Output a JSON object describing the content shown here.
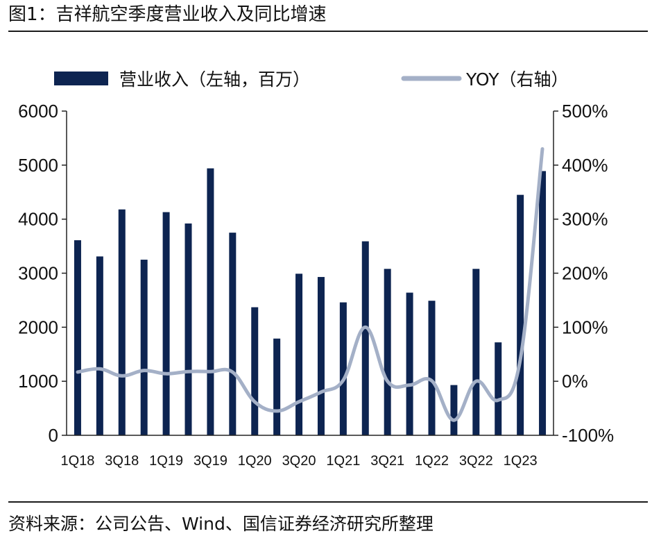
{
  "figure": {
    "title": "图1：吉祥航空季度营业收入及同比增速",
    "source": "资料来源：公司公告、Wind、国信证券经济研究所整理"
  },
  "colors": {
    "bar": "#0d2451",
    "line": "#a4b0c7",
    "axis": "#222222"
  },
  "chart_data": {
    "type": "bar",
    "title": "吉祥航空季度营业收入及同比增速",
    "categories": [
      "1Q18",
      "2Q18",
      "3Q18",
      "4Q18",
      "1Q19",
      "2Q19",
      "3Q19",
      "4Q19",
      "1Q20",
      "2Q20",
      "3Q20",
      "4Q20",
      "1Q21",
      "2Q21",
      "3Q21",
      "4Q21",
      "1Q22",
      "2Q22",
      "3Q22",
      "4Q22",
      "1Q23",
      "2Q23"
    ],
    "x_tick_labels": [
      "1Q18",
      "3Q18",
      "1Q19",
      "3Q19",
      "1Q20",
      "3Q20",
      "1Q21",
      "3Q21",
      "1Q22",
      "3Q22",
      "1Q23"
    ],
    "series": [
      {
        "name": "营业收入（左轴，百万）",
        "type": "bar",
        "axis": "left",
        "values": [
          3610,
          3310,
          4180,
          3250,
          4130,
          3920,
          4940,
          3750,
          2370,
          1790,
          2990,
          2930,
          2460,
          3590,
          3080,
          2640,
          2490,
          930,
          3080,
          1720,
          4450,
          4890
        ]
      },
      {
        "name": "YOY（右轴）",
        "type": "line",
        "axis": "right",
        "values": [
          17,
          23,
          10,
          20,
          14,
          18,
          18,
          17,
          -38,
          -55,
          -38,
          -20,
          2,
          100,
          0,
          -7,
          1,
          -72,
          0,
          -35,
          40,
          430
        ]
      }
    ],
    "y_left": {
      "min": 0,
      "max": 6000,
      "ticks": [
        "6000",
        "5000",
        "4000",
        "3000",
        "2000",
        "1000",
        "0"
      ]
    },
    "y_right": {
      "min": -100,
      "max": 500,
      "ticks": [
        "500%",
        "400%",
        "300%",
        "200%",
        "100%",
        "0%",
        "-100%"
      ]
    },
    "legend": {
      "placement": "top",
      "items": [
        "营业收入（左轴，百万）",
        "YOY（右轴）"
      ]
    }
  }
}
